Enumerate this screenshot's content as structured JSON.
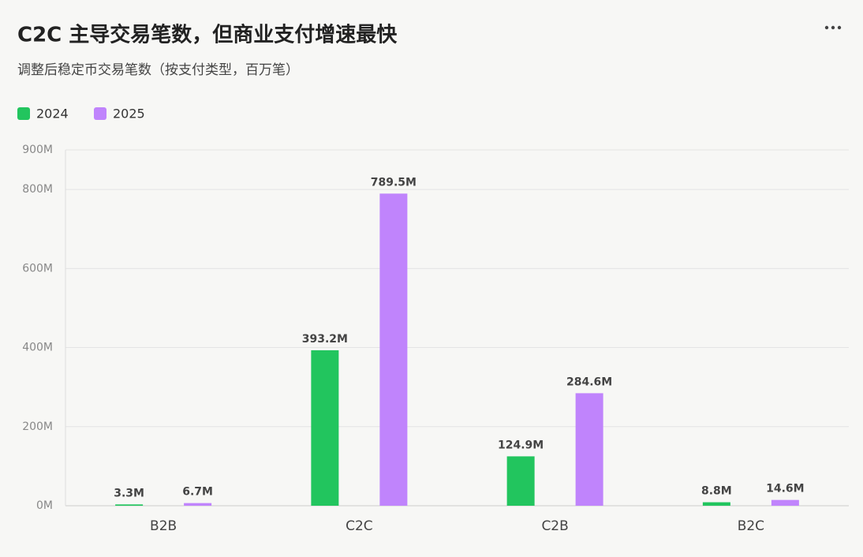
{
  "chart_data": {
    "type": "bar",
    "title": "C2C 主导交易笔数，但商业支付增速最快",
    "subtitle": "调整后稳定币交易笔数（按支付类型，百万笔）",
    "categories": [
      "B2B",
      "C2C",
      "C2B",
      "B2C"
    ],
    "series": [
      {
        "name": "2024",
        "color": "#22c55e",
        "values": [
          3.3,
          393.2,
          124.9,
          8.8
        ],
        "value_labels": [
          "3.3M",
          "393.2M",
          "124.9M",
          "8.8M"
        ]
      },
      {
        "name": "2025",
        "color": "#c084fc",
        "values": [
          6.7,
          789.5,
          284.6,
          14.6
        ],
        "value_labels": [
          "6.7M",
          "789.5M",
          "284.6M",
          "14.6M"
        ]
      }
    ],
    "ylim": [
      0,
      900
    ],
    "yticks": [
      {
        "value": 0,
        "label": "0M"
      },
      {
        "value": 200,
        "label": "200M"
      },
      {
        "value": 400,
        "label": "400M"
      },
      {
        "value": 600,
        "label": "600M"
      },
      {
        "value": 800,
        "label": "800M"
      },
      {
        "value": 900,
        "label": "900M"
      }
    ],
    "grid": true,
    "legend": "top-left"
  }
}
